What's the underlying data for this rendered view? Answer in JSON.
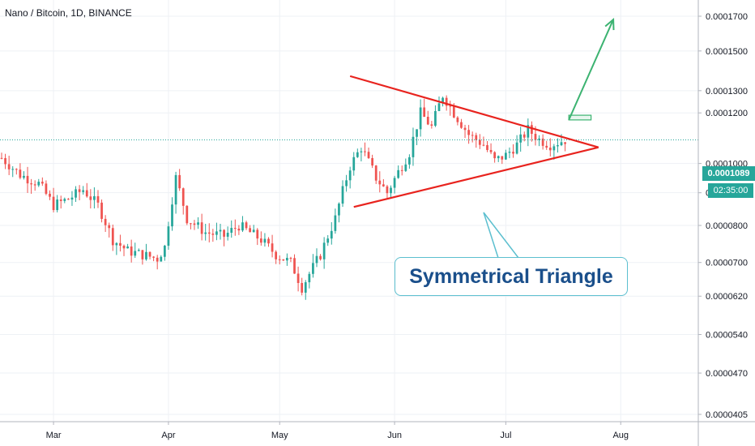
{
  "title": "Nano / Bitcoin, 1D, BINANCE",
  "annotation": "Symmetrical Triangle",
  "current_price_label": "0.0001089",
  "countdown_label": "02:35:00",
  "colors": {
    "up": "#26a69a",
    "down": "#ef5350",
    "trendline": "#e8231e",
    "arrow": "#3cb371",
    "callout_border": "#5cbfcf",
    "callout_text": "#1a4f8b",
    "grid": "#eef1f5"
  },
  "chart_data": {
    "type": "candlestick",
    "scale": "log",
    "ylim": [
      3.95e-05,
      0.00018
    ],
    "y_ticks": [
      "0.0001700",
      "0.0001500",
      "0.0001300",
      "0.0001200",
      "0.0001000",
      "0.0000900",
      "0.0000800",
      "0.0000700",
      "0.0000620",
      "0.0000540",
      "0.0000470",
      "0.0000405"
    ],
    "x_ticks": [
      "Mar",
      "Apr",
      "May",
      "Jun",
      "Jul",
      "Aug"
    ],
    "current_price": 0.0001089,
    "triangle_upper": [
      [
        "May 20",
        0.000137
      ],
      [
        "Jul 26",
        0.000106
      ]
    ],
    "triangle_lower": [
      [
        "May 21",
        8.55e-05
      ],
      [
        "Jul 26",
        0.000106
      ]
    ],
    "breakout_arrow": [
      [
        "Jul 18",
        0.000117
      ],
      [
        "Jul 30",
        0.000168
      ]
    ],
    "target_box": [
      [
        "Jul 18",
        0.000117
      ],
      [
        "Jul 24",
        0.000119
      ]
    ]
  }
}
